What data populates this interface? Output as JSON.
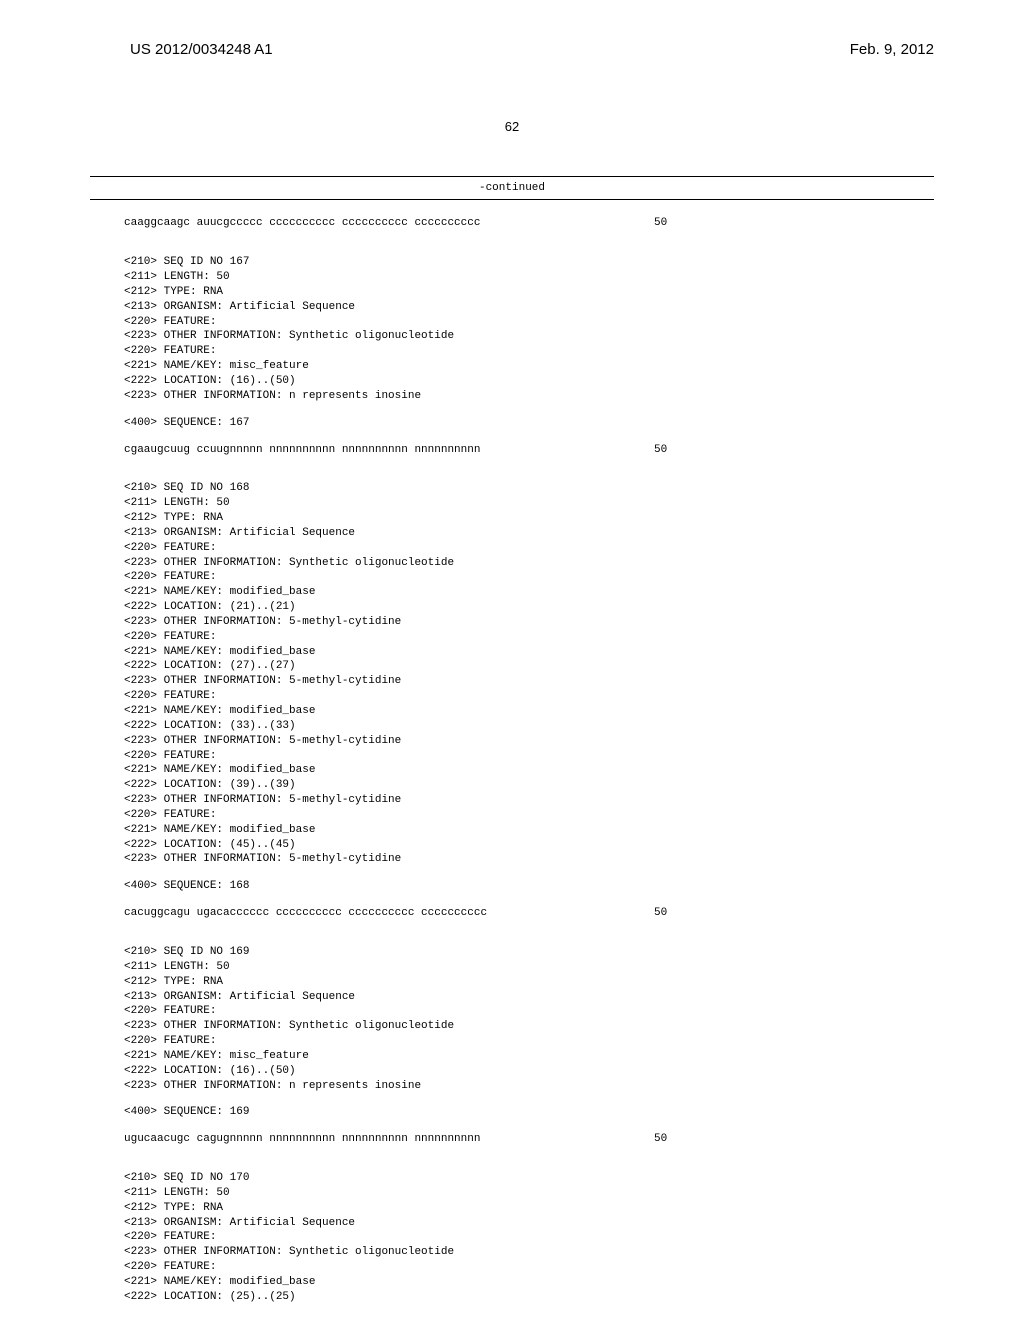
{
  "header": {
    "publication_id": "US 2012/0034248 A1",
    "publication_date": "Feb. 9, 2012"
  },
  "page_number": "62",
  "continued_label": "-continued",
  "seq166_seq": "caaggcaagc auucgccccc cccccccccc cccccccccc cccccccccc",
  "seq166_len": "50",
  "seq167": {
    "l1": "<210> SEQ ID NO 167",
    "l2": "<211> LENGTH: 50",
    "l3": "<212> TYPE: RNA",
    "l4": "<213> ORGANISM: Artificial Sequence",
    "l5": "<220> FEATURE:",
    "l6": "<223> OTHER INFORMATION: Synthetic oligonucleotide",
    "l7": "<220> FEATURE:",
    "l8": "<221> NAME/KEY: misc_feature",
    "l9": "<222> LOCATION: (16)..(50)",
    "l10": "<223> OTHER INFORMATION: n represents inosine",
    "l11": "<400> SEQUENCE: 167",
    "seq": "cgaaugcuug ccuugnnnnn nnnnnnnnnn nnnnnnnnnn nnnnnnnnnn",
    "len": "50"
  },
  "seq168": {
    "l1": "<210> SEQ ID NO 168",
    "l2": "<211> LENGTH: 50",
    "l3": "<212> TYPE: RNA",
    "l4": "<213> ORGANISM: Artificial Sequence",
    "l5": "<220> FEATURE:",
    "l6": "<223> OTHER INFORMATION: Synthetic oligonucleotide",
    "l7": "<220> FEATURE:",
    "l8": "<221> NAME/KEY: modified_base",
    "l9": "<222> LOCATION: (21)..(21)",
    "l10": "<223> OTHER INFORMATION: 5-methyl-cytidine",
    "l11": "<220> FEATURE:",
    "l12": "<221> NAME/KEY: modified_base",
    "l13": "<222> LOCATION: (27)..(27)",
    "l14": "<223> OTHER INFORMATION: 5-methyl-cytidine",
    "l15": "<220> FEATURE:",
    "l16": "<221> NAME/KEY: modified_base",
    "l17": "<222> LOCATION: (33)..(33)",
    "l18": "<223> OTHER INFORMATION: 5-methyl-cytidine",
    "l19": "<220> FEATURE:",
    "l20": "<221> NAME/KEY: modified_base",
    "l21": "<222> LOCATION: (39)..(39)",
    "l22": "<223> OTHER INFORMATION: 5-methyl-cytidine",
    "l23": "<220> FEATURE:",
    "l24": "<221> NAME/KEY: modified_base",
    "l25": "<222> LOCATION: (45)..(45)",
    "l26": "<223> OTHER INFORMATION: 5-methyl-cytidine",
    "l27": "<400> SEQUENCE: 168",
    "seq": "cacuggcagu ugacacccccc cccccccccc cccccccccc cccccccccc",
    "len": "50"
  },
  "seq169": {
    "l1": "<210> SEQ ID NO 169",
    "l2": "<211> LENGTH: 50",
    "l3": "<212> TYPE: RNA",
    "l4": "<213> ORGANISM: Artificial Sequence",
    "l5": "<220> FEATURE:",
    "l6": "<223> OTHER INFORMATION: Synthetic oligonucleotide",
    "l7": "<220> FEATURE:",
    "l8": "<221> NAME/KEY: misc_feature",
    "l9": "<222> LOCATION: (16)..(50)",
    "l10": "<223> OTHER INFORMATION: n represents inosine",
    "l11": "<400> SEQUENCE: 169",
    "seq": "ugucaacugc cagugnnnnn nnnnnnnnnn nnnnnnnnnn nnnnnnnnnn",
    "len": "50"
  },
  "seq170": {
    "l1": "<210> SEQ ID NO 170",
    "l2": "<211> LENGTH: 50",
    "l3": "<212> TYPE: RNA",
    "l4": "<213> ORGANISM: Artificial Sequence",
    "l5": "<220> FEATURE:",
    "l6": "<223> OTHER INFORMATION: Synthetic oligonucleotide",
    "l7": "<220> FEATURE:",
    "l8": "<221> NAME/KEY: modified_base",
    "l9": "<222> LOCATION: (25)..(25)"
  }
}
